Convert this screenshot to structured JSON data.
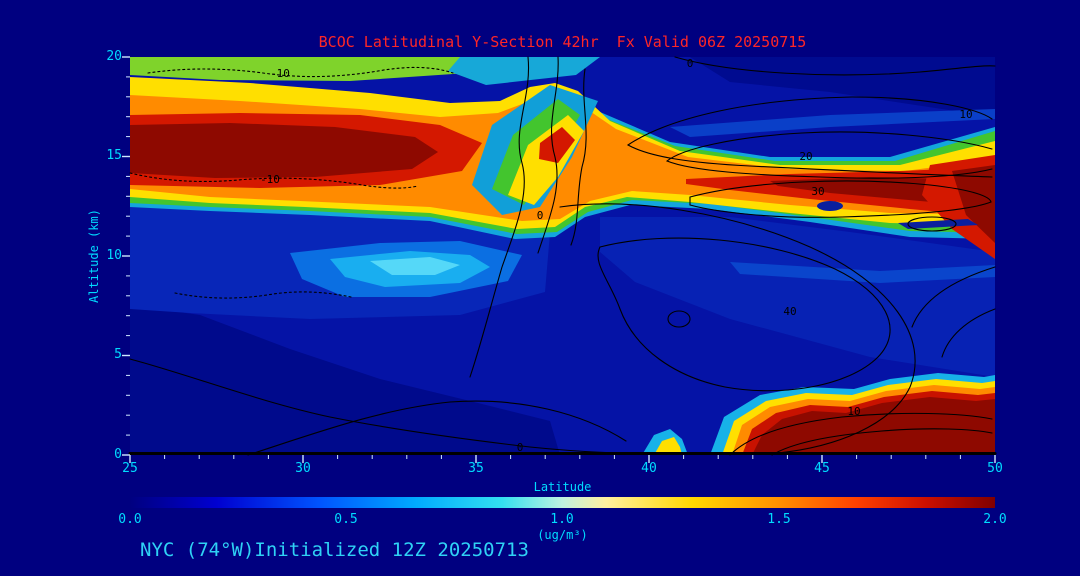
{
  "chart_data": {
    "type": "heatmap",
    "title": "BCOC Latitudinal Y-Section 42hr  Fx Valid 06Z 20250715",
    "xlabel": "Latitude",
    "ylabel": "Altitude (km)",
    "units": "(ug/m³)",
    "xlim": [
      25,
      50
    ],
    "ylim": [
      0,
      20
    ],
    "grid": false,
    "x_ticks": [
      "25",
      "30",
      "35",
      "40",
      "45",
      "50"
    ],
    "y_ticks": [
      "0",
      "5",
      "10",
      "15",
      "20"
    ],
    "x": [
      25,
      27.5,
      30,
      32.5,
      35,
      37.5,
      40,
      42.5,
      45,
      47.5,
      50
    ],
    "y": [
      0,
      2,
      4,
      6,
      8,
      10,
      12,
      14,
      16,
      18,
      20
    ],
    "values_orientation": "rows follow y (altitude, bottom to top); columns follow x (latitude)",
    "values": [
      [
        0.15,
        0.15,
        0.15,
        0.15,
        0.2,
        0.2,
        0.3,
        1.8,
        2.0,
        2.0,
        1.9
      ],
      [
        0.15,
        0.15,
        0.15,
        0.15,
        0.2,
        0.2,
        0.25,
        0.6,
        1.2,
        0.8,
        0.5
      ],
      [
        0.2,
        0.2,
        0.2,
        0.25,
        0.25,
        0.25,
        0.3,
        0.3,
        0.35,
        0.3,
        0.3
      ],
      [
        0.25,
        0.3,
        0.3,
        0.3,
        0.35,
        0.3,
        0.3,
        0.3,
        0.35,
        0.3,
        0.3
      ],
      [
        0.3,
        0.35,
        0.5,
        0.55,
        0.45,
        0.4,
        0.35,
        0.35,
        0.4,
        0.35,
        0.3
      ],
      [
        0.35,
        0.4,
        0.55,
        0.7,
        0.5,
        0.45,
        0.4,
        0.4,
        0.5,
        0.45,
        0.4
      ],
      [
        0.6,
        0.6,
        0.6,
        0.6,
        0.7,
        0.8,
        0.7,
        0.8,
        1.0,
        1.4,
        1.6
      ],
      [
        2.0,
        2.0,
        1.9,
        2.0,
        1.7,
        1.2,
        1.1,
        1.2,
        1.6,
        1.9,
        2.0
      ],
      [
        1.3,
        1.2,
        1.1,
        1.0,
        0.9,
        0.7,
        0.8,
        0.9,
        1.0,
        1.1,
        1.2
      ],
      [
        1.0,
        0.9,
        0.8,
        0.6,
        0.5,
        0.4,
        0.5,
        0.5,
        0.5,
        0.5,
        0.5
      ],
      [
        0.9,
        0.8,
        0.6,
        0.4,
        0.3,
        0.3,
        0.3,
        0.3,
        0.3,
        0.3,
        0.3
      ]
    ],
    "colorbar": {
      "min": 0.0,
      "max": 2.0,
      "ticks": [
        "0.0",
        "0.5",
        "1.0",
        "1.5",
        "2.0"
      ],
      "units": "(ug/m³)",
      "colors": [
        "#000080",
        "#0055ff",
        "#00aaff",
        "#33e0f0",
        "#bff3e0",
        "#ffd800",
        "#ff9000",
        "#cc0f00",
        "#800000"
      ]
    },
    "contour_overlay": {
      "levels": [
        -10,
        0,
        10,
        20,
        30,
        40
      ],
      "line_color": "#000000",
      "labels": [
        {
          "text": "-10"
        },
        {
          "text": "-10"
        },
        {
          "text": "0"
        },
        {
          "text": "10"
        },
        {
          "text": "20"
        },
        {
          "text": "30"
        },
        {
          "text": "40"
        },
        {
          "text": "10"
        },
        {
          "text": "0"
        },
        {
          "text": "0"
        }
      ]
    },
    "colors": {
      "background": "#000080",
      "title_text": "#ff2626",
      "axis_text": "#00dcff",
      "footer_text": "#2fd2f5",
      "contour": "#000000"
    }
  },
  "footer": {
    "text": "NYC (74°W)Initialized 12Z 20250713"
  }
}
